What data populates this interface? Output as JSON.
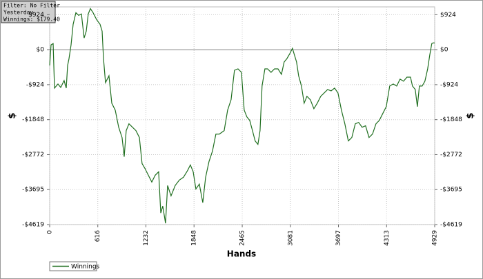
{
  "chart_data": {
    "type": "line",
    "annotations": [
      "Filter: No Filter",
      "Yesterday",
      "Winnings: $179.40"
    ],
    "x_label": "Hands",
    "y_label": "$",
    "x": [
      0,
      18,
      44,
      62,
      106,
      141,
      185,
      212,
      230,
      247,
      274,
      300,
      336,
      371,
      406,
      441,
      468,
      494,
      521,
      556,
      600,
      645,
      671,
      689,
      715,
      759,
      795,
      839,
      883,
      927,
      954,
      980,
      1015,
      1060,
      1104,
      1148,
      1183,
      1219,
      1263,
      1307,
      1351,
      1395,
      1422,
      1448,
      1483,
      1510,
      1554,
      1607,
      1660,
      1713,
      1766,
      1801,
      1837,
      1872,
      1916,
      1960,
      1996,
      2040,
      2084,
      2128,
      2172,
      2234,
      2278,
      2322,
      2366,
      2411,
      2455,
      2490,
      2525,
      2561,
      2596,
      2631,
      2666,
      2693,
      2719,
      2755,
      2790,
      2834,
      2878,
      2923,
      2967,
      3002,
      3037,
      3073,
      3108,
      3134,
      3161,
      3187,
      3223,
      3258,
      3293,
      3337,
      3382,
      3426,
      3470,
      3514,
      3558,
      3603,
      3647,
      3691,
      3735,
      3779,
      3823,
      3868,
      3912,
      3956,
      4000,
      4044,
      4088,
      4133,
      4177,
      4221,
      4265,
      4309,
      4353,
      4398,
      4442,
      4486,
      4530,
      4574,
      4619,
      4645,
      4680,
      4707,
      4733,
      4768,
      4804,
      4839,
      4865,
      4892,
      4910,
      4929
    ],
    "series": [
      {
        "name": "Winnings",
        "color": "#1f6e1f",
        "values": [
          -417,
          127,
          163,
          -1015,
          -906,
          -997,
          -815,
          -1015,
          -417,
          -236,
          127,
          670,
          978,
          906,
          942,
          308,
          489,
          942,
          1087,
          978,
          797,
          670,
          489,
          -236,
          -870,
          -689,
          -1413,
          -1595,
          -2048,
          -2319,
          -2827,
          -2138,
          -1957,
          -2048,
          -2138,
          -2319,
          -3008,
          -3135,
          -3316,
          -3497,
          -3316,
          -3225,
          -4313,
          -4132,
          -4584,
          -3588,
          -3860,
          -3588,
          -3443,
          -3370,
          -3189,
          -3044,
          -3225,
          -3678,
          -3551,
          -4041,
          -3370,
          -2954,
          -2682,
          -2229,
          -2229,
          -2138,
          -1595,
          -1323,
          -544,
          -508,
          -598,
          -1595,
          -1776,
          -1866,
          -2138,
          -2410,
          -2501,
          -2138,
          -960,
          -508,
          -508,
          -598,
          -508,
          -508,
          -652,
          -326,
          -236,
          -109,
          36,
          -145,
          -326,
          -689,
          -960,
          -1413,
          -1232,
          -1323,
          -1559,
          -1413,
          -1232,
          -1142,
          -1051,
          -1087,
          -1015,
          -1142,
          -1595,
          -1957,
          -2410,
          -2319,
          -1957,
          -1921,
          -2048,
          -2011,
          -2319,
          -2229,
          -1957,
          -1866,
          -1685,
          -1504,
          -960,
          -906,
          -960,
          -779,
          -833,
          -725,
          -725,
          -960,
          -1051,
          -1504,
          -960,
          -960,
          -833,
          -508,
          -145,
          163,
          180,
          179
        ]
      }
    ],
    "xlim": [
      0,
      4929
    ],
    "xticks": [
      0,
      616,
      1232,
      1848,
      2465,
      3081,
      3697,
      4313,
      4929
    ],
    "ylim": [
      -4619,
      1130
    ],
    "yticks": [
      {
        "value": 924,
        "label": "$924"
      },
      {
        "value": 0,
        "label": "$0"
      },
      {
        "value": -924,
        "label": "-$924"
      },
      {
        "value": -1848,
        "label": "-$1848"
      },
      {
        "value": -2772,
        "label": "-$2772"
      },
      {
        "value": -3695,
        "label": "-$3695"
      },
      {
        "value": -4619,
        "label": "-$4619"
      }
    ],
    "grid": true
  }
}
